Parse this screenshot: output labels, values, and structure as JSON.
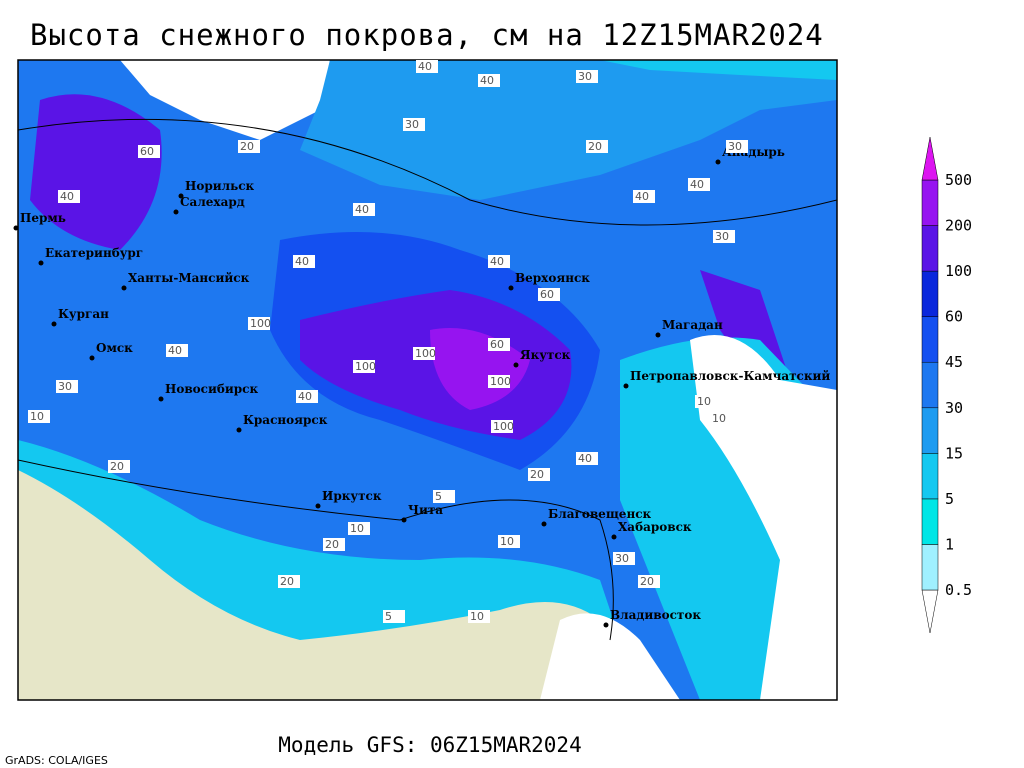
{
  "header": {
    "title": "Высота снежного покрова, см на 12Z15MAR2024"
  },
  "cities": [
    "Норильск",
    "Салехард",
    "Пермь",
    "Екатеринбург",
    "Ханты-Мансийск",
    "Курган",
    "Омск",
    "Новосибирск",
    "Красноярск",
    "Иркутск",
    "Чита",
    "Верхоянск",
    "Якутск",
    "Магадан",
    "Анадырь",
    "Петропавловск-Камчатский",
    "Благовещенск",
    "Хабаровск",
    "Владивосток"
  ],
  "contour_labels": [
    40,
    30,
    40,
    20,
    30,
    20,
    40,
    40,
    60,
    40,
    40,
    60,
    100,
    100,
    100,
    60,
    100,
    100,
    40,
    30,
    10,
    10,
    40,
    30,
    20,
    40,
    20,
    40,
    10,
    20,
    5,
    10,
    20,
    5,
    10,
    20,
    30,
    30,
    40,
    10
  ],
  "legend": {
    "levels": [
      0.5,
      1,
      5,
      15,
      30,
      45,
      60,
      100,
      200,
      500
    ],
    "colors": [
      "#ffffff",
      "#a0f0ff",
      "#00e6e6",
      "#14c8f0",
      "#1e9bf0",
      "#1e78f0",
      "#1450f0",
      "#0a28dc",
      "#5a14e6",
      "#9614f0",
      "#dc14f0"
    ]
  },
  "footer": {
    "model": "Модель GFS: 06Z15MAR2024",
    "credit": "GrADS: COLA/IGES"
  }
}
